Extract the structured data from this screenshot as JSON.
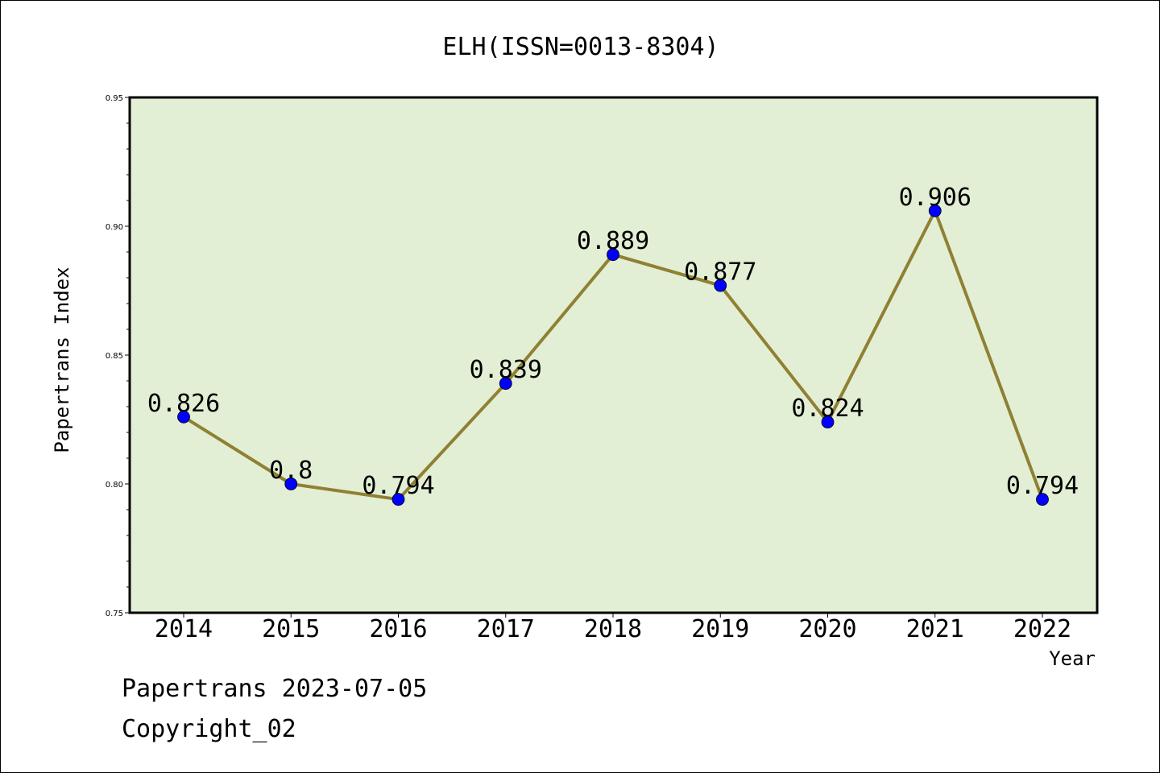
{
  "chart_data": {
    "type": "line",
    "title": "ELH(ISSN=0013-8304)",
    "xlabel": "Year",
    "ylabel": "Papertrans Index",
    "categories": [
      "2014",
      "2015",
      "2016",
      "2017",
      "2018",
      "2019",
      "2020",
      "2021",
      "2022"
    ],
    "series": [
      {
        "values": [
          0.826,
          0.8,
          0.794,
          0.839,
          0.889,
          0.877,
          0.824,
          0.906,
          0.794
        ],
        "data_labels": [
          "0.826",
          "0.8",
          "0.794",
          "0.839",
          "0.889",
          "0.877",
          "0.824",
          "0.906",
          "0.794"
        ],
        "line_color": "#8f8033",
        "marker_color": "#0000ff"
      }
    ],
    "ylim": [
      0.75,
      0.95
    ],
    "yticks": [
      "0.75",
      "0.80",
      "0.85",
      "0.90",
      "0.95"
    ],
    "plot_background": "#e2efd5",
    "grid": false
  },
  "footer": {
    "line1": "Papertrans 2023-07-05",
    "line2": "Copyright_02"
  }
}
